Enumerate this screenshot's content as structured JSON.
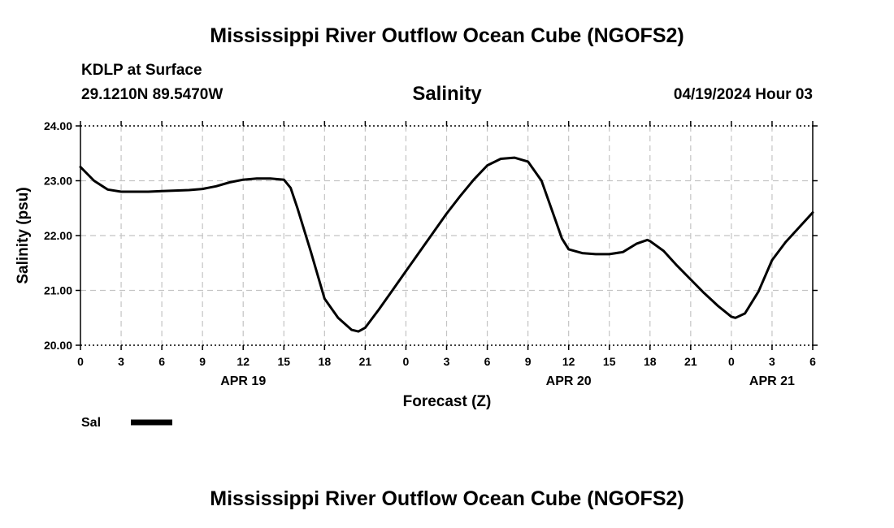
{
  "page": {
    "title": "Mississippi River Outflow Ocean Cube (NGOFS2)",
    "footer_title": "Mississippi River Outflow Ocean Cube (NGOFS2)",
    "station": "KDLP at Surface",
    "coords": "29.1210N  89.5470W",
    "datetime": "04/19/2024 Hour 03",
    "legend_label": "Sal"
  },
  "chart_data": {
    "type": "line",
    "title": "Salinity",
    "xlabel": "Forecast (Z)",
    "ylabel": "Salinity (psu)",
    "xlim": [
      0,
      54
    ],
    "ylim": [
      20.0,
      24.0
    ],
    "grid": true,
    "legend": "bottom-left",
    "yticks": [
      "20.00",
      "21.00",
      "22.00",
      "23.00",
      "24.00"
    ],
    "xticks": [
      "0",
      "3",
      "6",
      "9",
      "12",
      "15",
      "18",
      "21",
      "0",
      "3",
      "6",
      "9",
      "12",
      "15",
      "18",
      "21",
      "0",
      "3",
      "6"
    ],
    "date_labels": [
      {
        "label": "APR 19",
        "x": 12
      },
      {
        "label": "APR 20",
        "x": 36
      },
      {
        "label": "APR 21",
        "x": 51
      }
    ],
    "series": [
      {
        "name": "Sal",
        "color": "#000000",
        "x": [
          0,
          1,
          2,
          3,
          4,
          5,
          6,
          7,
          8,
          9,
          10,
          11,
          12,
          13,
          14,
          15,
          15.5,
          16,
          17,
          18,
          19,
          20,
          20.5,
          21,
          22,
          23,
          24,
          25,
          26,
          27,
          28,
          29,
          30,
          31,
          32,
          33,
          34,
          35,
          35.5,
          36,
          37,
          38,
          39,
          40,
          41,
          41.8,
          42,
          43,
          44,
          45,
          46,
          47,
          48,
          48.3,
          49,
          50,
          51,
          52,
          53,
          54
        ],
        "values": [
          23.25,
          23.0,
          22.84,
          22.8,
          22.8,
          22.8,
          22.81,
          22.82,
          22.83,
          22.85,
          22.9,
          22.97,
          23.02,
          23.04,
          23.04,
          23.02,
          22.87,
          22.5,
          21.7,
          20.85,
          20.5,
          20.28,
          20.25,
          20.32,
          20.65,
          21.0,
          21.35,
          21.7,
          22.05,
          22.4,
          22.72,
          23.02,
          23.28,
          23.4,
          23.42,
          23.35,
          23.0,
          22.3,
          21.95,
          21.75,
          21.68,
          21.66,
          21.66,
          21.7,
          21.85,
          21.92,
          21.9,
          21.72,
          21.45,
          21.2,
          20.95,
          20.72,
          20.52,
          20.5,
          20.58,
          20.98,
          21.55,
          21.88,
          22.15,
          22.42
        ]
      }
    ]
  }
}
